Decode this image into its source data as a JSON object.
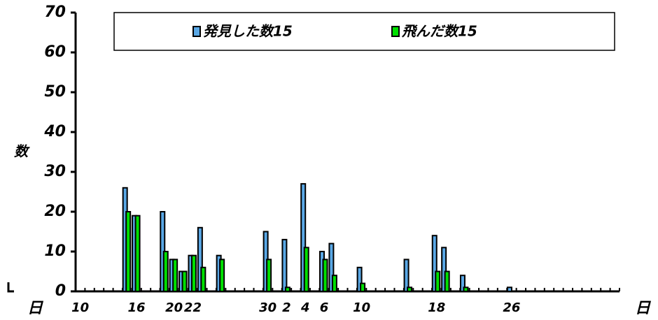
{
  "chart_data": {
    "type": "bar",
    "y_label": "数",
    "x_label": "日",
    "categories": [
      "10",
      null,
      null,
      null,
      null,
      null,
      "16",
      null,
      null,
      null,
      "20",
      null,
      "22",
      null,
      null,
      null,
      null,
      null,
      null,
      null,
      "30",
      null,
      "2",
      null,
      "4",
      null,
      "6",
      null,
      null,
      null,
      "10",
      null,
      null,
      null,
      null,
      null,
      null,
      null,
      "18",
      null,
      null,
      null,
      null,
      null,
      null,
      null,
      "26",
      null,
      null,
      null,
      null,
      null,
      null,
      null,
      null,
      null,
      null,
      null
    ],
    "series": [
      {
        "name": "発見した数15",
        "color": "#5aa8e6",
        "values": [
          null,
          null,
          null,
          null,
          null,
          26,
          19,
          null,
          null,
          20,
          8,
          5,
          9,
          16,
          null,
          9,
          null,
          null,
          null,
          null,
          15,
          null,
          13,
          null,
          27,
          null,
          10,
          12,
          null,
          null,
          6,
          null,
          null,
          null,
          null,
          8,
          null,
          null,
          14,
          11,
          null,
          4,
          null,
          null,
          null,
          null,
          1,
          null,
          null,
          null,
          null,
          null,
          null,
          null,
          null,
          null,
          null,
          null
        ]
      },
      {
        "name": "飛んだ数15",
        "color": "#00e000",
        "values": [
          null,
          null,
          null,
          null,
          null,
          20,
          19,
          null,
          null,
          10,
          8,
          5,
          9,
          6,
          null,
          8,
          null,
          null,
          null,
          null,
          8,
          null,
          1,
          null,
          11,
          null,
          8,
          4,
          null,
          null,
          2,
          null,
          null,
          null,
          null,
          1,
          null,
          null,
          5,
          5,
          null,
          1,
          null,
          null,
          null,
          null,
          0,
          null,
          null,
          null,
          null,
          null,
          null,
          null,
          null,
          null,
          null,
          null
        ]
      }
    ],
    "ylim": [
      0,
      70
    ],
    "yticks": [
      0,
      10,
      20,
      30,
      40,
      50,
      60,
      70
    ],
    "legend": "top"
  }
}
